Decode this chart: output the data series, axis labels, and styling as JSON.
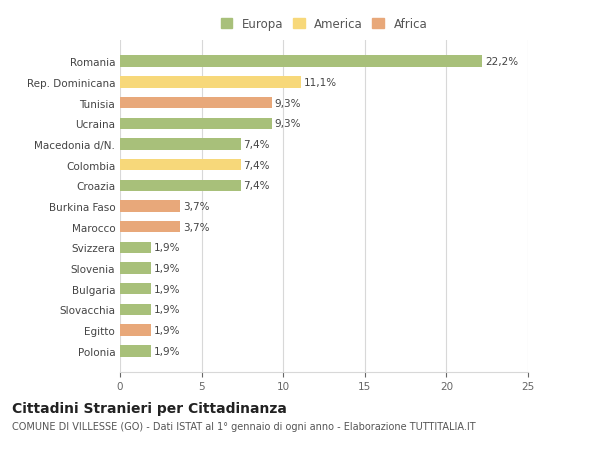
{
  "categories": [
    "Romania",
    "Rep. Dominicana",
    "Tunisia",
    "Ucraina",
    "Macedonia d/N.",
    "Colombia",
    "Croazia",
    "Burkina Faso",
    "Marocco",
    "Svizzera",
    "Slovenia",
    "Bulgaria",
    "Slovacchia",
    "Egitto",
    "Polonia"
  ],
  "values": [
    22.2,
    11.1,
    9.3,
    9.3,
    7.4,
    7.4,
    7.4,
    3.7,
    3.7,
    1.9,
    1.9,
    1.9,
    1.9,
    1.9,
    1.9
  ],
  "labels": [
    "22,2%",
    "11,1%",
    "9,3%",
    "9,3%",
    "7,4%",
    "7,4%",
    "7,4%",
    "3,7%",
    "3,7%",
    "1,9%",
    "1,9%",
    "1,9%",
    "1,9%",
    "1,9%",
    "1,9%"
  ],
  "continent": [
    "Europa",
    "America",
    "Africa",
    "Europa",
    "Europa",
    "America",
    "Europa",
    "Africa",
    "Africa",
    "Europa",
    "Europa",
    "Europa",
    "Europa",
    "Africa",
    "Europa"
  ],
  "colors": {
    "Europa": "#a8c07a",
    "America": "#f7d87a",
    "Africa": "#e8a87a"
  },
  "xlim": [
    0,
    25
  ],
  "xticks": [
    0,
    5,
    10,
    15,
    20,
    25
  ],
  "title": "Cittadini Stranieri per Cittadinanza",
  "subtitle": "COMUNE DI VILLESSE (GO) - Dati ISTAT al 1° gennaio di ogni anno - Elaborazione TUTTITALIA.IT",
  "background_color": "#ffffff",
  "grid_color": "#d8d8d8",
  "bar_height": 0.55,
  "label_fontsize": 7.5,
  "tick_fontsize": 7.5,
  "title_fontsize": 10,
  "subtitle_fontsize": 7
}
